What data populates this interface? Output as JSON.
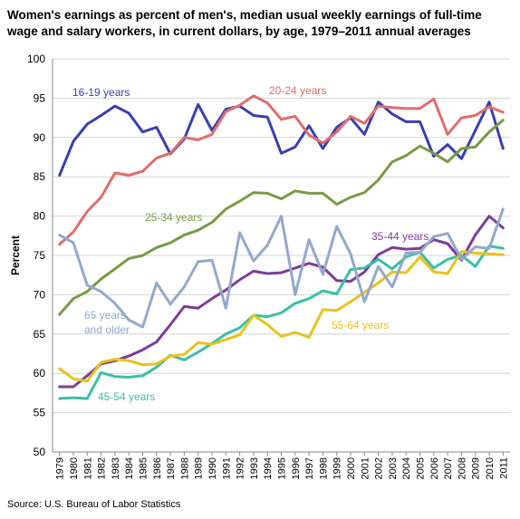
{
  "chart_data": {
    "type": "line",
    "title": "Women's earnings as percent of men's, median usual weekly earnings of full-time wage and salary workers, in current dollars, by age, 1979–2011 annual averages",
    "xlabel": "",
    "ylabel": "Percent",
    "ylim": [
      50,
      100
    ],
    "yticks": [
      "50",
      "55",
      "60",
      "65",
      "70",
      "75",
      "80",
      "85",
      "90",
      "95",
      "100"
    ],
    "grid": "horizontal",
    "x": [
      "1979",
      "1980",
      "1981",
      "1982",
      "1983",
      "1984",
      "1985",
      "1986",
      "1987",
      "1988",
      "1989",
      "1990",
      "1991",
      "1992",
      "1993",
      "1994",
      "1995",
      "1996",
      "1997",
      "1998",
      "1999",
      "2000",
      "2001",
      "2002",
      "2003",
      "2004",
      "2005",
      "2006",
      "2007",
      "2008",
      "2009",
      "2010",
      "2011"
    ],
    "series": [
      {
        "name": "16-19 years",
        "color": "#3a3fb0",
        "values": [
          85.2,
          89.5,
          91.7,
          92.8,
          94.0,
          93.1,
          90.7,
          91.3,
          87.9,
          89.8,
          94.2,
          90.9,
          93.6,
          94.0,
          92.8,
          92.6,
          88.0,
          88.8,
          91.5,
          88.6,
          91.3,
          92.5,
          90.4,
          94.5,
          93.0,
          92.0,
          92.0,
          87.6,
          89.1,
          87.3,
          90.9,
          94.5,
          88.6
        ]
      },
      {
        "name": "20-24 years",
        "color": "#e06e6c",
        "values": [
          76.4,
          78.0,
          80.6,
          82.4,
          85.5,
          85.2,
          85.7,
          87.4,
          88.0,
          90.0,
          89.7,
          90.4,
          93.3,
          94.1,
          95.3,
          94.4,
          92.3,
          92.7,
          90.3,
          89.3,
          90.7,
          92.7,
          91.8,
          94.0,
          93.8,
          93.7,
          93.7,
          94.9,
          90.4,
          92.5,
          92.8,
          93.9,
          93.2
        ]
      },
      {
        "name": "25-34 years",
        "color": "#7a9a45",
        "values": [
          67.5,
          69.5,
          70.4,
          72.0,
          73.3,
          74.6,
          75.0,
          76.0,
          76.6,
          77.6,
          78.2,
          79.2,
          80.9,
          81.9,
          83.0,
          82.9,
          82.2,
          83.2,
          82.9,
          82.9,
          81.5,
          82.4,
          83.0,
          84.6,
          86.9,
          87.7,
          88.9,
          88.0,
          86.9,
          88.6,
          88.8,
          90.7,
          92.2
        ]
      },
      {
        "name": "35-44 years",
        "color": "#7d3c98",
        "values": [
          58.3,
          58.3,
          59.7,
          61.2,
          61.6,
          62.2,
          63.0,
          64.0,
          66.2,
          68.5,
          68.3,
          69.5,
          70.6,
          71.9,
          73.0,
          72.7,
          72.8,
          73.4,
          74.0,
          73.5,
          71.8,
          71.7,
          72.9,
          75.1,
          76.0,
          75.8,
          75.9,
          77.0,
          76.5,
          74.4,
          77.6,
          80.0,
          78.5
        ]
      },
      {
        "name": "45-54 years",
        "color": "#3bbfa8",
        "values": [
          56.8,
          56.9,
          56.8,
          60.1,
          59.6,
          59.5,
          59.7,
          60.8,
          62.3,
          61.7,
          62.7,
          63.8,
          65.0,
          65.8,
          67.4,
          67.2,
          67.7,
          68.9,
          69.5,
          70.5,
          70.1,
          73.2,
          73.4,
          74.5,
          73.3,
          74.8,
          75.4,
          73.4,
          74.5,
          75.0,
          73.6,
          76.2,
          75.9
        ]
      },
      {
        "name": "55-64 years",
        "color": "#e8c31d",
        "values": [
          60.6,
          59.3,
          59.0,
          61.4,
          61.8,
          61.6,
          61.1,
          61.2,
          62.2,
          62.4,
          63.9,
          63.7,
          64.3,
          64.9,
          67.4,
          66.2,
          64.7,
          65.2,
          64.6,
          68.1,
          68.0,
          69.1,
          70.3,
          71.5,
          72.9,
          72.8,
          74.8,
          72.9,
          72.7,
          75.5,
          75.3,
          75.2,
          75.1
        ]
      },
      {
        "name": "65 years and older",
        "color": "#94a8cc",
        "values": [
          77.6,
          76.6,
          71.2,
          70.4,
          68.9,
          66.8,
          65.9,
          71.5,
          68.8,
          71.0,
          74.2,
          74.4,
          68.3,
          77.9,
          74.3,
          76.3,
          80.0,
          70.0,
          77.0,
          72.6,
          78.7,
          75.2,
          69.1,
          73.6,
          71.0,
          75.3,
          75.4,
          77.4,
          77.8,
          74.5,
          76.1,
          75.9,
          80.9
        ]
      }
    ],
    "source": "Source: U.S. Bureau of Labor Statistics"
  }
}
